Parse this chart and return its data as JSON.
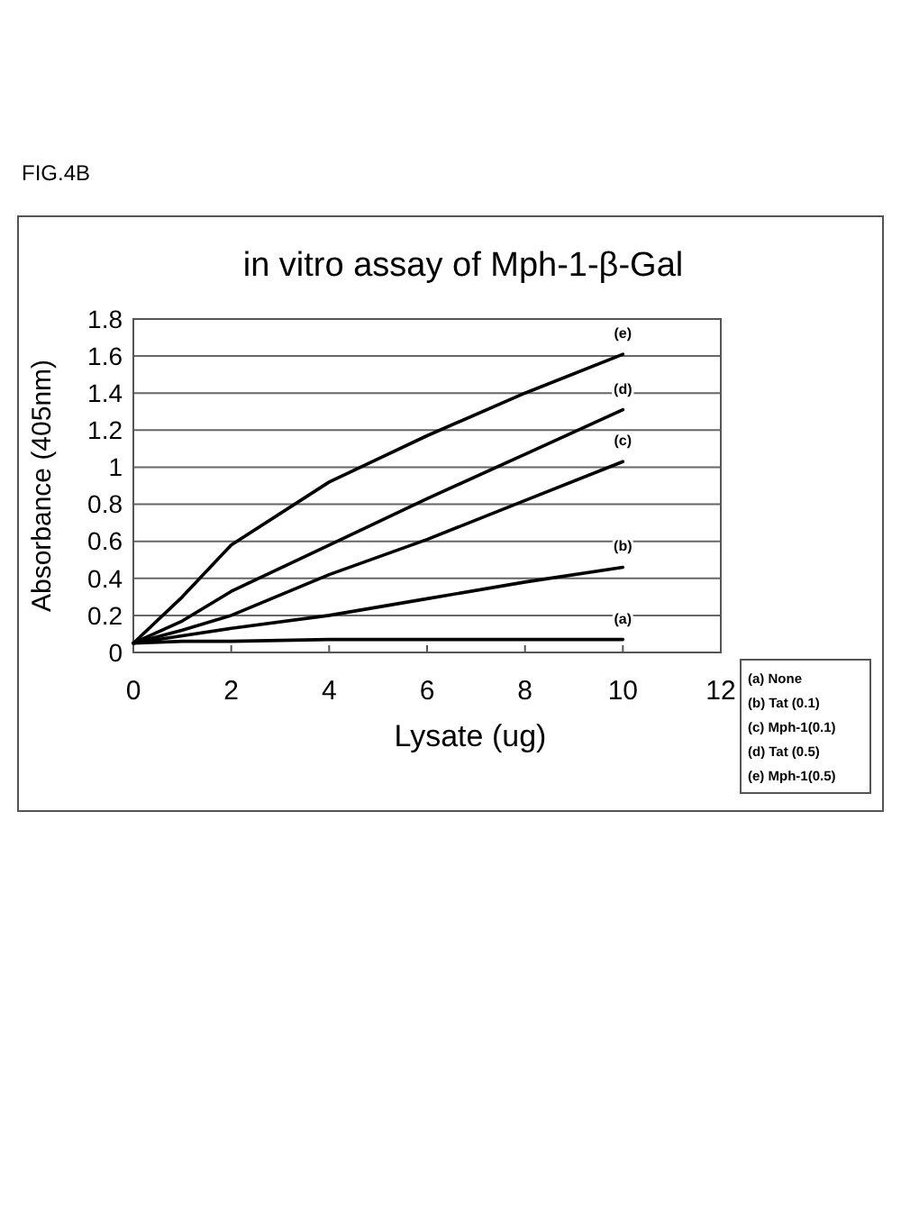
{
  "chart_data": {
    "type": "line",
    "title": "in vitro  assay of Mph-1-β-Gal",
    "xlabel": "Lysate (ug)",
    "ylabel": "Absorbance (405nm)",
    "x": [
      0,
      1,
      2,
      4,
      6,
      8,
      10
    ],
    "series": [
      {
        "name": "(a)",
        "color": "#000000",
        "values": [
          0.05,
          0.06,
          0.06,
          0.07,
          0.07,
          0.07,
          0.07
        ]
      },
      {
        "name": "(b)",
        "color": "#000000",
        "values": [
          0.05,
          0.09,
          0.13,
          0.2,
          0.29,
          0.38,
          0.46
        ]
      },
      {
        "name": "(c)",
        "color": "#000000",
        "values": [
          0.05,
          0.12,
          0.2,
          0.42,
          0.61,
          0.82,
          1.03
        ]
      },
      {
        "name": "(d)",
        "color": "#000000",
        "values": [
          0.05,
          0.17,
          0.33,
          0.58,
          0.83,
          1.07,
          1.31
        ]
      },
      {
        "name": "(e)",
        "color": "#000000",
        "values": [
          0.05,
          0.3,
          0.58,
          0.92,
          1.17,
          1.4,
          1.61
        ]
      }
    ],
    "xlim": [
      0,
      12
    ],
    "xticks": [
      0,
      2,
      4,
      6,
      8,
      10,
      12
    ],
    "ylim": [
      0,
      1.8
    ],
    "yticks": [
      0,
      0.2,
      0.4,
      0.6,
      0.8,
      1,
      1.2,
      1.4,
      1.6,
      1.8
    ],
    "grid": "y",
    "marker": "none",
    "line_style": "solid",
    "annotations": [
      "FIG.4B",
      "(a)  None",
      "(b)  Tat (0.1)",
      "(c)  Mph-1(0.1)",
      "(d) Tat (0.5)",
      "(e) Mph-1(0.5)"
    ]
  }
}
